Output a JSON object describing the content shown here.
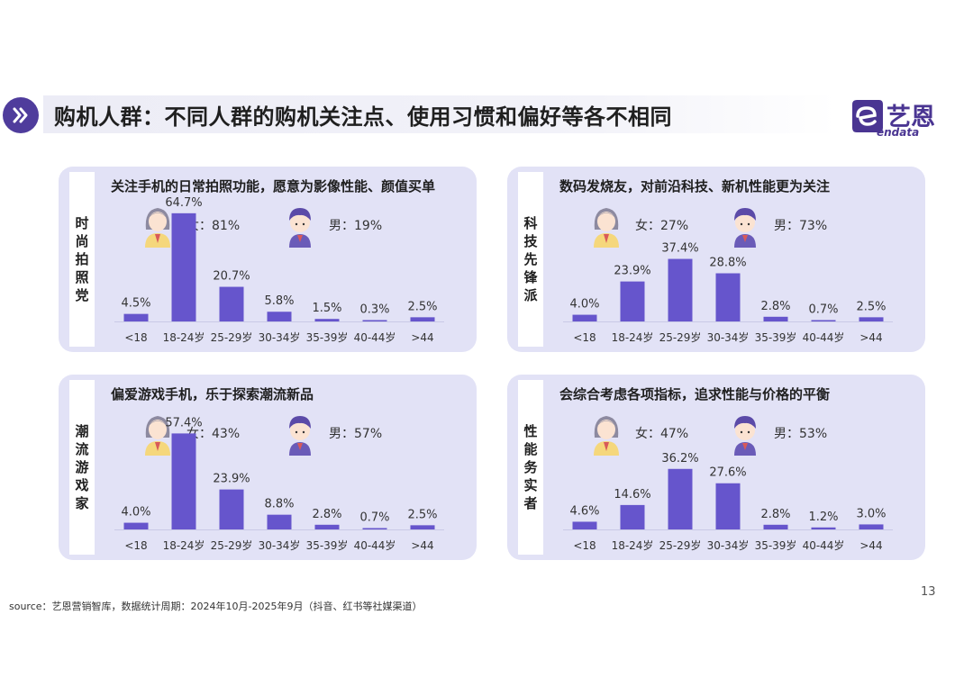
{
  "header": {
    "title": "购机人群：不同人群的购机关注点、使用习惯和偏好等各不相同",
    "logo_cn": "艺恩",
    "logo_en": "endata"
  },
  "colors": {
    "accent": "#4f3c9c",
    "bar": "#6655cc",
    "panel": "#e2e2f6"
  },
  "panels": [
    {
      "label": "时尚拍照党",
      "headline": "关注手机的日常拍照功能，愿意为影像性能、颜值买单",
      "female": "女：81%",
      "male": "男：19%"
    },
    {
      "label": "科技先锋派",
      "headline": "数码发烧友，对前沿科技、新机性能更为关注",
      "female": "女：27%",
      "male": "男：73%"
    },
    {
      "label": "潮流游戏家",
      "headline": "偏爱游戏手机，乐于探索潮流新品",
      "female": "女：43%",
      "male": "男：57%"
    },
    {
      "label": "性能务实者",
      "headline": "会综合考虑各项指标，追求性能与价格的平衡",
      "female": "女：47%",
      "male": "男：53%"
    }
  ],
  "chart_data": [
    {
      "type": "bar",
      "categories": [
        "<18",
        "18-24岁",
        "25-29岁",
        "30-34岁",
        "35-39岁",
        "40-44岁",
        ">44"
      ],
      "values": [
        4.5,
        64.7,
        20.7,
        5.8,
        1.5,
        0.3,
        2.5
      ],
      "labels": [
        "4.5%",
        "64.7%",
        "20.7%",
        "5.8%",
        "1.5%",
        "0.3%",
        "2.5%"
      ],
      "title": "",
      "xlabel": "",
      "ylabel": "",
      "ylim": [
        0,
        70
      ]
    },
    {
      "type": "bar",
      "categories": [
        "<18",
        "18-24岁",
        "25-29岁",
        "30-34岁",
        "35-39岁",
        "40-44岁",
        ">44"
      ],
      "values": [
        4.0,
        23.9,
        37.4,
        28.8,
        2.8,
        0.7,
        2.5
      ],
      "labels": [
        "4.0%",
        "23.9%",
        "37.4%",
        "28.8%",
        "2.8%",
        "0.7%",
        "2.5%"
      ],
      "title": "",
      "xlabel": "",
      "ylabel": "",
      "ylim": [
        0,
        70
      ]
    },
    {
      "type": "bar",
      "categories": [
        "<18",
        "18-24岁",
        "25-29岁",
        "30-34岁",
        "35-39岁",
        "40-44岁",
        ">44"
      ],
      "values": [
        4.0,
        57.4,
        23.9,
        8.8,
        2.8,
        0.7,
        2.5
      ],
      "labels": [
        "4.0%",
        "57.4%",
        "23.9%",
        "8.8%",
        "2.8%",
        "0.7%",
        "2.5%"
      ],
      "title": "",
      "xlabel": "",
      "ylabel": "",
      "ylim": [
        0,
        70
      ]
    },
    {
      "type": "bar",
      "categories": [
        "<18",
        "18-24岁",
        "25-29岁",
        "30-34岁",
        "35-39岁",
        "40-44岁",
        ">44"
      ],
      "values": [
        4.6,
        14.6,
        36.2,
        27.6,
        2.8,
        1.2,
        3.0
      ],
      "labels": [
        "4.6%",
        "14.6%",
        "36.2%",
        "27.6%",
        "2.8%",
        "1.2%",
        "3.0%"
      ],
      "title": "",
      "xlabel": "",
      "ylabel": "",
      "ylim": [
        0,
        70
      ]
    }
  ],
  "footer": {
    "page_number": "13",
    "source": "source：艺恩营销智库，数据统计周期：2024年10月-2025年9月（抖音、红书等社媒渠道）"
  }
}
